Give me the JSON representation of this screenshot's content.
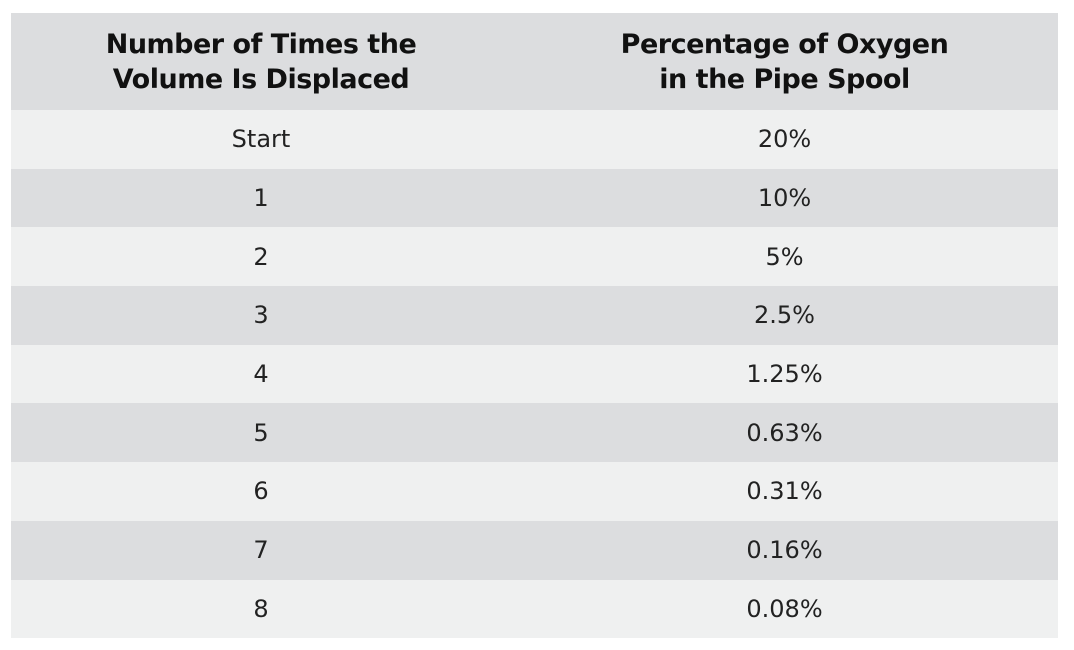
{
  "table": {
    "headers": [
      {
        "line1": "Number of Times the",
        "line2": "Volume Is Displaced"
      },
      {
        "line1": "Percentage of Oxygen",
        "line2": "in the Pipe Spool"
      }
    ],
    "rows": [
      {
        "times": "Start",
        "oxygen": "20%"
      },
      {
        "times": "1",
        "oxygen": "10%"
      },
      {
        "times": "2",
        "oxygen": "5%"
      },
      {
        "times": "3",
        "oxygen": "2.5%"
      },
      {
        "times": "4",
        "oxygen": "1.25%"
      },
      {
        "times": "5",
        "oxygen": "0.63%"
      },
      {
        "times": "6",
        "oxygen": "0.31%"
      },
      {
        "times": "7",
        "oxygen": "0.16%"
      },
      {
        "times": "8",
        "oxygen": "0.08%"
      }
    ]
  },
  "colors": {
    "header_bg": "#dcdddf",
    "row_light": "#eff0f0",
    "row_dark": "#dcdddf",
    "text": "#222222"
  }
}
